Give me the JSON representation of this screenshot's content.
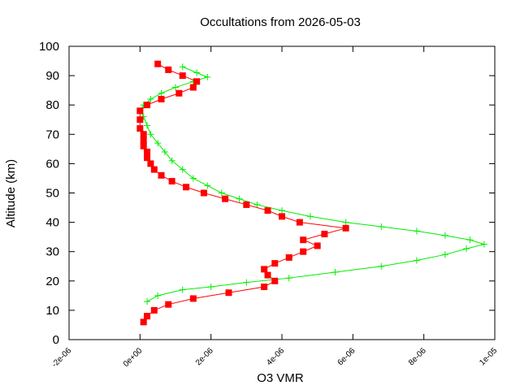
{
  "chart_data": {
    "type": "scatter",
    "title": "Occultations from 2026-05-03",
    "xlabel": "O3 VMR",
    "ylabel": "Altitude (km)",
    "xlim": [
      -2e-06,
      1e-05
    ],
    "ylim": [
      0,
      100
    ],
    "x_tick_labels": [
      "-2e-06",
      "0e+00",
      "2e-06",
      "4e-06",
      "6e-06",
      "8e-06",
      "1e-05"
    ],
    "x_tick_values": [
      -2e-06,
      0,
      2e-06,
      4e-06,
      6e-06,
      8e-06,
      1e-05
    ],
    "y_tick_values": [
      0,
      10,
      20,
      30,
      40,
      50,
      60,
      70,
      80,
      90,
      100
    ],
    "grid": false,
    "legend": "none",
    "series": [
      {
        "color": "#00ee00",
        "marker": "plus",
        "points": [
          [
            2e-07,
            13
          ],
          [
            5e-07,
            15
          ],
          [
            1.2e-06,
            17
          ],
          [
            2e-06,
            18
          ],
          [
            3e-06,
            19.5
          ],
          [
            4.2e-06,
            21
          ],
          [
            5.5e-06,
            23
          ],
          [
            6.8e-06,
            25
          ],
          [
            7.8e-06,
            27
          ],
          [
            8.6e-06,
            29
          ],
          [
            9.2e-06,
            31
          ],
          [
            9.7e-06,
            32.5
          ],
          [
            9.3e-06,
            34
          ],
          [
            8.6e-06,
            35.5
          ],
          [
            7.8e-06,
            37
          ],
          [
            6.8e-06,
            38.5
          ],
          [
            5.8e-06,
            40
          ],
          [
            4.8e-06,
            42
          ],
          [
            4e-06,
            44
          ],
          [
            3.3e-06,
            46
          ],
          [
            2.8e-06,
            48
          ],
          [
            2.3e-06,
            50
          ],
          [
            1.9e-06,
            52.5
          ],
          [
            1.5e-06,
            55
          ],
          [
            1.2e-06,
            58
          ],
          [
            9e-07,
            61
          ],
          [
            7e-07,
            64
          ],
          [
            5e-07,
            67
          ],
          [
            3e-07,
            70
          ],
          [
            2e-07,
            73
          ],
          [
            1e-07,
            76
          ],
          [
            0,
            78
          ],
          [
            1e-07,
            80
          ],
          [
            3e-07,
            82
          ],
          [
            6e-07,
            84
          ],
          [
            1e-06,
            86
          ],
          [
            1.5e-06,
            88
          ],
          [
            1.9e-06,
            89.5
          ],
          [
            1.6e-06,
            91
          ],
          [
            1.2e-06,
            93
          ]
        ]
      },
      {
        "color": "#ff0000",
        "marker": "square",
        "points": [
          [
            1e-07,
            6
          ],
          [
            2e-07,
            8
          ],
          [
            4e-07,
            10
          ],
          [
            8e-07,
            12
          ],
          [
            1.5e-06,
            14
          ],
          [
            2.5e-06,
            16
          ],
          [
            3.5e-06,
            18
          ],
          [
            3.8e-06,
            20
          ],
          [
            3.6e-06,
            22
          ],
          [
            3.5e-06,
            24
          ],
          [
            3.8e-06,
            26
          ],
          [
            4.2e-06,
            28
          ],
          [
            4.6e-06,
            30
          ],
          [
            5e-06,
            32
          ],
          [
            4.6e-06,
            34
          ],
          [
            5.2e-06,
            36
          ],
          [
            5.8e-06,
            38
          ],
          [
            4.5e-06,
            40
          ],
          [
            4e-06,
            42
          ],
          [
            3.6e-06,
            44
          ],
          [
            3e-06,
            46
          ],
          [
            2.4e-06,
            48
          ],
          [
            1.8e-06,
            50
          ],
          [
            1.3e-06,
            52
          ],
          [
            9e-07,
            54
          ],
          [
            6e-07,
            56
          ],
          [
            4e-07,
            58
          ],
          [
            3e-07,
            60
          ],
          [
            2e-07,
            62
          ],
          [
            2e-07,
            64
          ],
          [
            1e-07,
            66
          ],
          [
            1e-07,
            68
          ],
          [
            1e-07,
            70
          ],
          [
            0,
            72
          ],
          [
            0,
            75
          ],
          [
            0,
            78
          ],
          [
            2e-07,
            80
          ],
          [
            6e-07,
            82
          ],
          [
            1.1e-06,
            84
          ],
          [
            1.5e-06,
            86
          ],
          [
            1.6e-06,
            88
          ],
          [
            1.2e-06,
            90
          ],
          [
            8e-07,
            92
          ],
          [
            5e-07,
            94
          ]
        ]
      }
    ]
  }
}
